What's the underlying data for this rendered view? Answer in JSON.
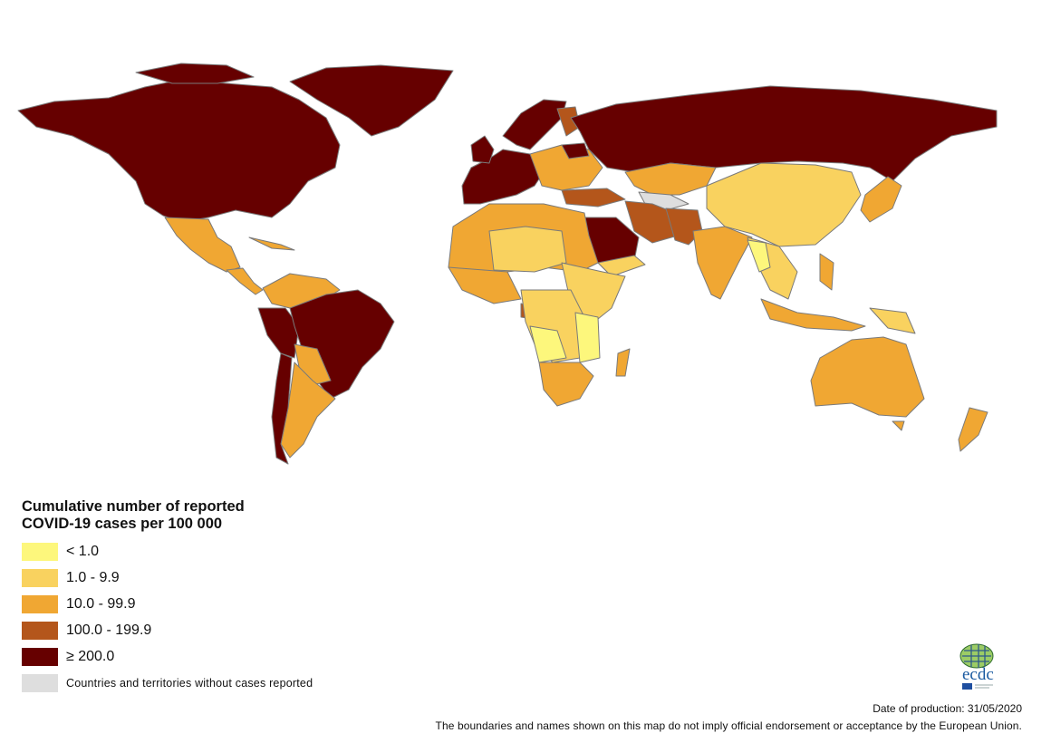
{
  "legend": {
    "title_line1": "Cumulative number of reported",
    "title_line2": "COVID-19 cases per 100 000",
    "items": [
      {
        "label": "< 1.0",
        "color": "#fdf77c"
      },
      {
        "label": "1.0 - 9.9",
        "color": "#f9d25f"
      },
      {
        "label": "10.0 - 99.9",
        "color": "#f0a733"
      },
      {
        "label": "100.0 - 199.9",
        "color": "#b4561b"
      },
      {
        "label": "≥ 200.0",
        "color": "#660000"
      },
      {
        "label": "Countries and territories without cases reported",
        "color": "#dedede"
      }
    ]
  },
  "logo": {
    "text": "ecdc"
  },
  "footer": {
    "date": "Date of production: 31/05/2020",
    "disclaimer": "The boundaries and names shown on this map do not imply official endorsement or acceptance by the European Union."
  }
}
